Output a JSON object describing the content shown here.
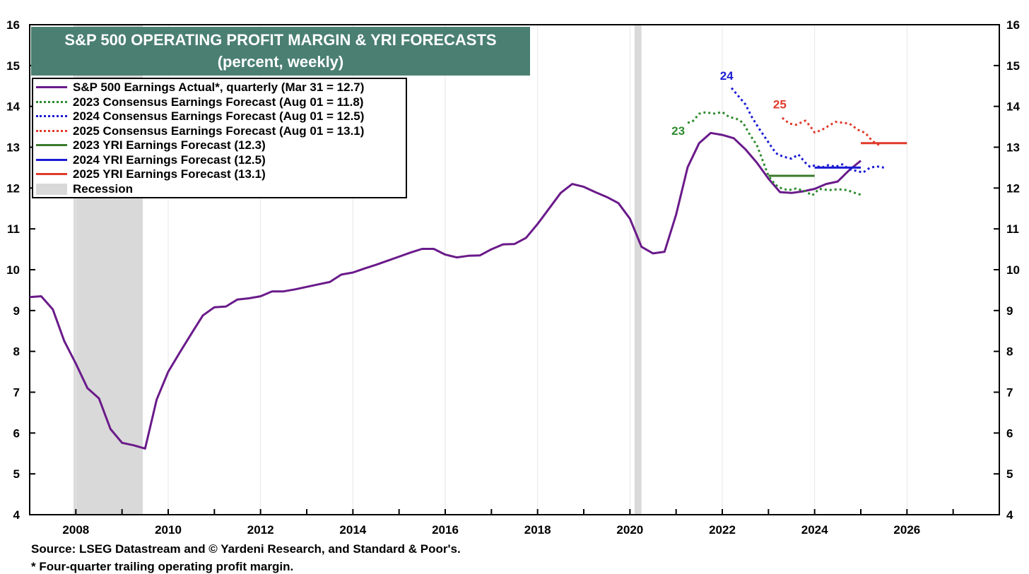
{
  "chart_data": {
    "type": "line",
    "title": "S&P 500 OPERATING PROFIT MARGIN & YRI FORECASTS",
    "subtitle": "(percent, weekly)",
    "xlim": [
      2007,
      2028
    ],
    "ylim": [
      4,
      16
    ],
    "yticks": [
      4,
      5,
      6,
      7,
      8,
      9,
      10,
      11,
      12,
      13,
      14,
      15,
      16
    ],
    "xticks": [
      2008,
      2010,
      2012,
      2014,
      2016,
      2018,
      2020,
      2022,
      2024,
      2026
    ],
    "legend": [
      {
        "label": "S&P 500 Earnings Actual*, quarterly (Mar 31 = 12.7)",
        "color": "#6a1a8a",
        "style": "solid"
      },
      {
        "label": "2023 Consensus Earnings Forecast (Aug 01 = 11.8)",
        "color": "#2e8b2e",
        "style": "dotted"
      },
      {
        "label": "2024 Consensus Earnings Forecast (Aug 01 = 12.5)",
        "color": "#1a1ad4",
        "style": "dotted"
      },
      {
        "label": "2025 Consensus Earnings Forecast (Aug 01 = 13.1)",
        "color": "#e03a2a",
        "style": "dotted"
      },
      {
        "label": "2023 YRI Earnings Forecast (12.3)",
        "color": "#3a7a2a",
        "style": "solid"
      },
      {
        "label": "2024 YRI Earnings Forecast (12.5)",
        "color": "#1a1ad4",
        "style": "solid"
      },
      {
        "label": "2025 YRI Earnings Forecast (13.1)",
        "color": "#e03a2a",
        "style": "solid"
      },
      {
        "label": "Recession",
        "color": "#d9d9d9",
        "style": "area"
      }
    ],
    "recessions": [
      [
        2007.95,
        2009.45
      ],
      [
        2020.1,
        2020.25
      ]
    ],
    "series": [
      {
        "name": "S&P 500 Earnings Actual",
        "color": "#6a1a8a",
        "style": "solid",
        "x": [
          2007.0,
          2007.25,
          2007.5,
          2007.75,
          2008.0,
          2008.25,
          2008.5,
          2008.75,
          2009.0,
          2009.25,
          2009.5,
          2009.75,
          2010.0,
          2010.25,
          2010.5,
          2010.75,
          2011.0,
          2011.25,
          2011.5,
          2011.75,
          2012.0,
          2012.25,
          2012.5,
          2012.75,
          2013.0,
          2013.25,
          2013.5,
          2013.75,
          2014.0,
          2014.25,
          2014.5,
          2014.75,
          2015.0,
          2015.25,
          2015.5,
          2015.75,
          2016.0,
          2016.25,
          2016.5,
          2016.75,
          2017.0,
          2017.25,
          2017.5,
          2017.75,
          2018.0,
          2018.25,
          2018.5,
          2018.75,
          2019.0,
          2019.25,
          2019.5,
          2019.75,
          2020.0,
          2020.25,
          2020.5,
          2020.75,
          2021.0,
          2021.25,
          2021.5,
          2021.75,
          2022.0,
          2022.25,
          2022.5,
          2022.75,
          2023.0,
          2023.25,
          2023.5,
          2023.75,
          2024.0,
          2024.25,
          2024.5,
          2024.75,
          2025.0
        ],
        "values": [
          9.33,
          9.35,
          9.03,
          8.25,
          7.7,
          7.1,
          6.85,
          6.1,
          5.76,
          5.7,
          5.62,
          6.82,
          7.5,
          7.97,
          8.43,
          8.88,
          9.08,
          9.1,
          9.27,
          9.3,
          9.35,
          9.47,
          9.47,
          9.52,
          9.58,
          9.64,
          9.7,
          9.88,
          9.93,
          10.03,
          10.12,
          10.22,
          10.32,
          10.42,
          10.51,
          10.51,
          10.37,
          10.3,
          10.34,
          10.35,
          10.5,
          10.62,
          10.63,
          10.78,
          11.12,
          11.5,
          11.88,
          12.1,
          12.03,
          11.9,
          11.78,
          11.63,
          11.25,
          10.56,
          10.4,
          10.44,
          11.35,
          12.51,
          13.1,
          13.35,
          13.3,
          13.22,
          12.95,
          12.62,
          12.23,
          11.9,
          11.88,
          11.92,
          11.98,
          12.1,
          12.16,
          12.44,
          12.67
        ]
      },
      {
        "name": "2023 Consensus Earnings Forecast",
        "color": "#2e8b2e",
        "style": "dotted",
        "x": [
          2021.25,
          2021.35,
          2021.5,
          2021.65,
          2021.8,
          2022.0,
          2022.15,
          2022.3,
          2022.45,
          2022.6,
          2022.75,
          2022.9,
          2023.0,
          2023.15,
          2023.3,
          2023.45,
          2023.6,
          2023.8,
          2023.95,
          2024.1,
          2024.3,
          2024.5,
          2024.7,
          2024.9,
          2025.05
        ],
        "values": [
          13.6,
          13.62,
          13.82,
          13.86,
          13.82,
          13.86,
          13.74,
          13.7,
          13.6,
          13.3,
          13.05,
          12.6,
          12.3,
          12.08,
          11.98,
          11.95,
          11.99,
          11.92,
          11.82,
          11.98,
          11.95,
          11.97,
          11.95,
          11.87,
          11.82
        ]
      },
      {
        "name": "2024 Consensus Earnings Forecast",
        "color": "#1a1ad4",
        "style": "dotted",
        "x": [
          2022.2,
          2022.35,
          2022.5,
          2022.65,
          2022.8,
          2022.95,
          2023.1,
          2023.2,
          2023.35,
          2023.5,
          2023.65,
          2023.8,
          2023.9,
          2024.0,
          2024.15,
          2024.3,
          2024.45,
          2024.6,
          2024.75,
          2024.9,
          2025.05,
          2025.2,
          2025.35,
          2025.5
        ],
        "values": [
          14.45,
          14.25,
          14.05,
          13.72,
          13.45,
          13.2,
          12.95,
          12.82,
          12.76,
          12.72,
          12.82,
          12.62,
          12.52,
          12.55,
          12.5,
          12.56,
          12.52,
          12.58,
          12.46,
          12.42,
          12.38,
          12.5,
          12.53,
          12.5
        ]
      },
      {
        "name": "2025 Consensus Earnings Forecast",
        "color": "#e03a2a",
        "style": "dotted",
        "x": [
          2023.3,
          2023.45,
          2023.6,
          2023.8,
          2023.9,
          2024.0,
          2024.15,
          2024.3,
          2024.45,
          2024.6,
          2024.75,
          2024.95,
          2025.1,
          2025.25,
          2025.4
        ],
        "values": [
          13.72,
          13.58,
          13.55,
          13.65,
          13.52,
          13.36,
          13.42,
          13.52,
          13.62,
          13.6,
          13.58,
          13.42,
          13.35,
          13.15,
          13.05
        ]
      },
      {
        "name": "2023 YRI Earnings Forecast",
        "color": "#3a7a2a",
        "style": "solid",
        "x": [
          2023.0,
          2024.0
        ],
        "values": [
          12.3,
          12.3
        ]
      },
      {
        "name": "2024 YRI Earnings Forecast",
        "color": "#1a1ad4",
        "style": "solid",
        "x": [
          2024.0,
          2025.0
        ],
        "values": [
          12.5,
          12.5
        ]
      },
      {
        "name": "2025 YRI Earnings Forecast",
        "color": "#e03a2a",
        "style": "solid",
        "x": [
          2025.0,
          2026.0
        ],
        "values": [
          13.1,
          13.1
        ]
      }
    ],
    "annotations": [
      {
        "text": "23",
        "x": 2020.9,
        "y": 13.3,
        "color": "#2e8b2e"
      },
      {
        "text": "24",
        "x": 2021.95,
        "y": 14.65,
        "color": "#1a1ad4"
      },
      {
        "text": "25",
        "x": 2023.1,
        "y": 13.95,
        "color": "#e03a2a"
      }
    ]
  },
  "footer": {
    "source": "Source: LSEG Datastream and © Yardeni Research, and Standard & Poor's.",
    "note": "* Four-quarter trailing operating profit margin."
  }
}
